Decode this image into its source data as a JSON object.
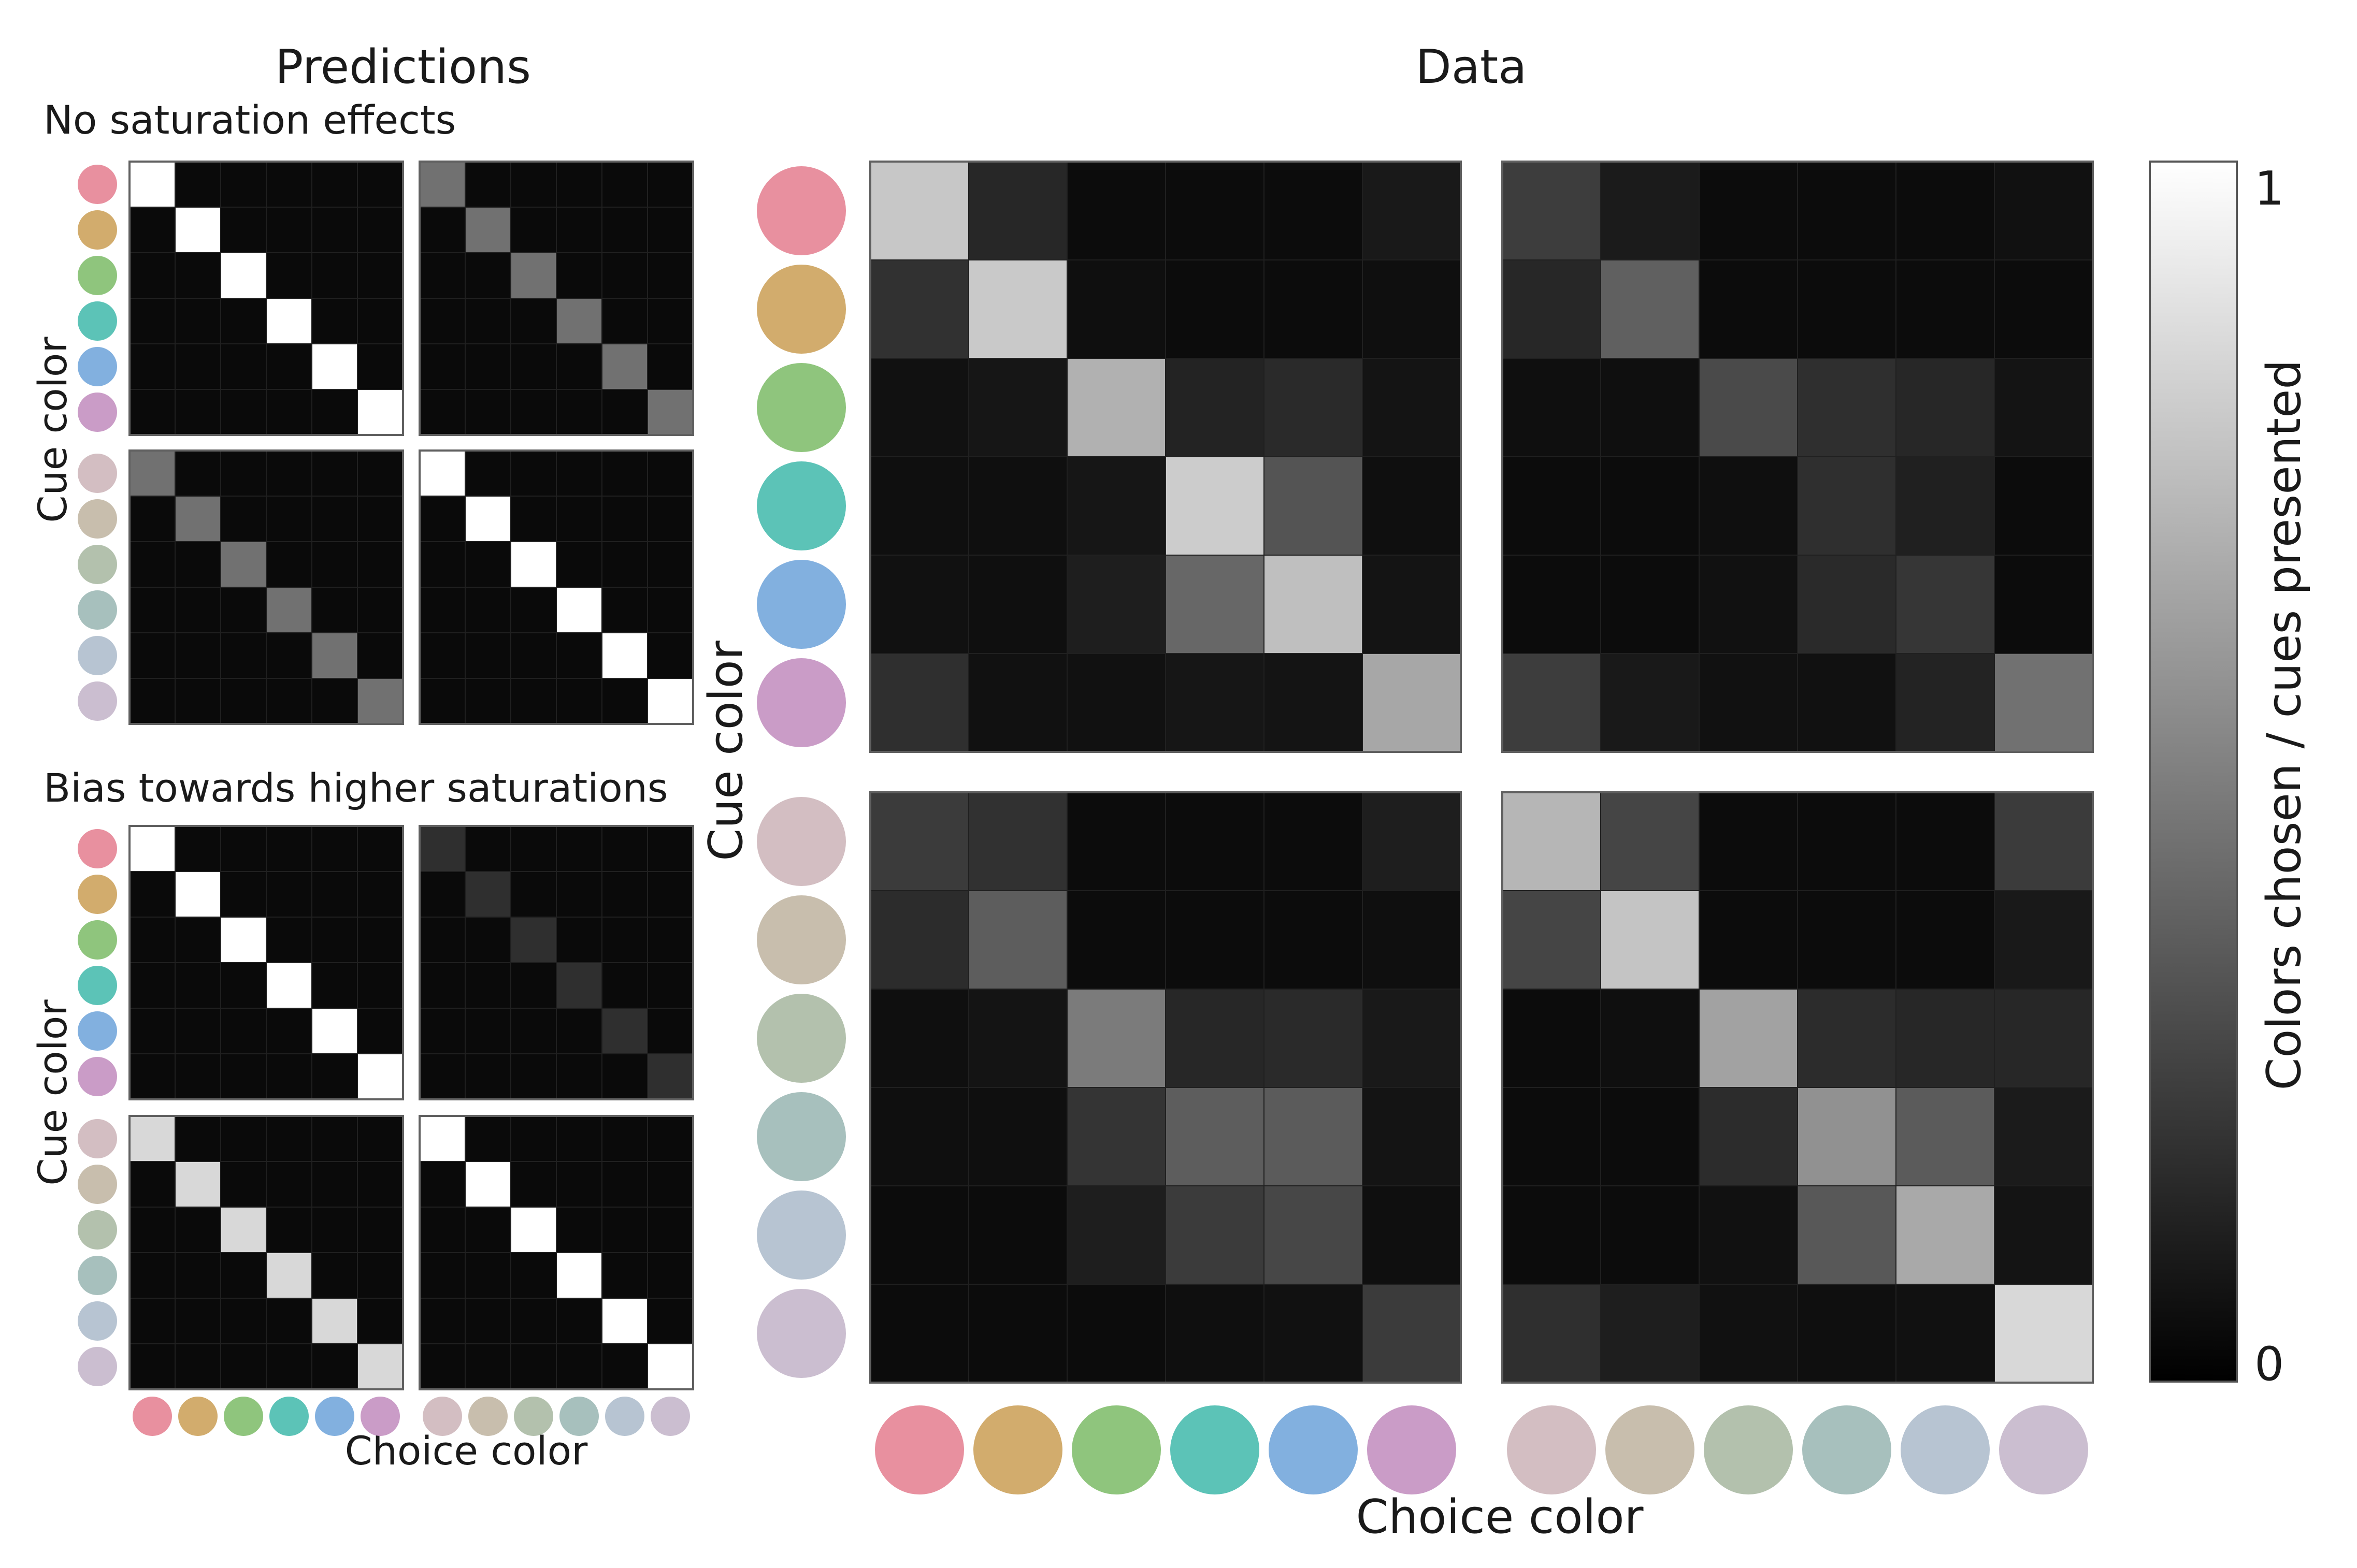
{
  "titles": {
    "predictions": "Predictions",
    "data": "Data",
    "no_saturation": "No saturation effects",
    "bias": "Bias towards higher saturations"
  },
  "axis_labels": {
    "cue_color": "Cue color",
    "choice_color": "Choice color",
    "colorbar": "Colors chosen / cues presented"
  },
  "colorbar": {
    "min_label": "0",
    "max_label": "1",
    "range": [
      0,
      1
    ]
  },
  "colors": {
    "saturated": [
      "#E8909F",
      "#D2AC6D",
      "#8FC57D",
      "#5CC3B7",
      "#82B0DF",
      "#CA9CC7"
    ],
    "desaturated": [
      "#D3BEC2",
      "#C8BEAD",
      "#B3C1AD",
      "#A7C0BD",
      "#B7C4D2",
      "#CBBED0"
    ]
  },
  "chart_data": [
    {
      "type": "heatmap",
      "title": "Predictions – No saturation effects",
      "rows": [
        "saturated cues",
        "desaturated cues"
      ],
      "cols": [
        "saturated choices",
        "desaturated choices"
      ],
      "ylabel": "Cue color",
      "zlim": [
        0,
        1
      ],
      "values": [
        [
          [
            1,
            0,
            0,
            0,
            0,
            0
          ],
          [
            0,
            1,
            0,
            0,
            0,
            0
          ],
          [
            0,
            0,
            1,
            0,
            0,
            0
          ],
          [
            0,
            0,
            0,
            1,
            0,
            0
          ],
          [
            0,
            0,
            0,
            0,
            1,
            0
          ],
          [
            0,
            0,
            0,
            0,
            0,
            1
          ]
        ],
        [
          [
            0.42,
            0,
            0,
            0,
            0,
            0
          ],
          [
            0,
            0.42,
            0,
            0,
            0,
            0
          ],
          [
            0,
            0,
            0.42,
            0,
            0,
            0
          ],
          [
            0,
            0,
            0,
            0.42,
            0,
            0
          ],
          [
            0,
            0,
            0,
            0,
            0.42,
            0
          ],
          [
            0,
            0,
            0,
            0,
            0,
            0.42
          ]
        ],
        [
          [
            0.42,
            0,
            0,
            0,
            0,
            0
          ],
          [
            0,
            0.42,
            0,
            0,
            0,
            0
          ],
          [
            0,
            0,
            0.42,
            0,
            0,
            0
          ],
          [
            0,
            0,
            0,
            0.42,
            0,
            0
          ],
          [
            0,
            0,
            0,
            0,
            0.42,
            0
          ],
          [
            0,
            0,
            0,
            0,
            0,
            0.42
          ]
        ],
        [
          [
            1,
            0,
            0,
            0,
            0,
            0
          ],
          [
            0,
            1,
            0,
            0,
            0,
            0
          ],
          [
            0,
            0,
            1,
            0,
            0,
            0
          ],
          [
            0,
            0,
            0,
            1,
            0,
            0
          ],
          [
            0,
            0,
            0,
            0,
            1,
            0
          ],
          [
            0,
            0,
            0,
            0,
            0,
            1
          ]
        ]
      ]
    },
    {
      "type": "heatmap",
      "title": "Predictions – Bias towards higher saturations",
      "rows": [
        "saturated cues",
        "desaturated cues"
      ],
      "cols": [
        "saturated choices",
        "desaturated choices"
      ],
      "ylabel": "Cue color",
      "xlabel": "Choice color",
      "zlim": [
        0,
        1
      ],
      "values": [
        [
          [
            1,
            0,
            0,
            0,
            0,
            0
          ],
          [
            0,
            1,
            0,
            0,
            0,
            0
          ],
          [
            0,
            0,
            1,
            0,
            0,
            0
          ],
          [
            0,
            0,
            0,
            1,
            0,
            0
          ],
          [
            0,
            0,
            0,
            0,
            1,
            0
          ],
          [
            0,
            0,
            0,
            0,
            0,
            1
          ]
        ],
        [
          [
            0.15,
            0,
            0,
            0,
            0,
            0
          ],
          [
            0,
            0.15,
            0,
            0,
            0,
            0
          ],
          [
            0,
            0,
            0.15,
            0,
            0,
            0
          ],
          [
            0,
            0,
            0,
            0.15,
            0,
            0
          ],
          [
            0,
            0,
            0,
            0,
            0.15,
            0
          ],
          [
            0,
            0,
            0,
            0,
            0,
            0.15
          ]
        ],
        [
          [
            0.84,
            0,
            0,
            0,
            0,
            0
          ],
          [
            0,
            0.84,
            0,
            0,
            0,
            0
          ],
          [
            0,
            0,
            0.84,
            0,
            0,
            0
          ],
          [
            0,
            0,
            0,
            0.84,
            0,
            0
          ],
          [
            0,
            0,
            0,
            0,
            0.84,
            0
          ],
          [
            0,
            0,
            0,
            0,
            0,
            0.84
          ]
        ],
        [
          [
            1,
            0,
            0,
            0,
            0,
            0
          ],
          [
            0,
            1,
            0,
            0,
            0,
            0
          ],
          [
            0,
            0,
            1,
            0,
            0,
            0
          ],
          [
            0,
            0,
            0,
            1,
            0,
            0
          ],
          [
            0,
            0,
            0,
            0,
            1,
            0
          ],
          [
            0,
            0,
            0,
            0,
            0,
            1
          ]
        ]
      ]
    },
    {
      "type": "heatmap",
      "title": "Data",
      "rows": [
        "saturated cues",
        "desaturated cues"
      ],
      "cols": [
        "saturated choices",
        "desaturated choices"
      ],
      "ylabel": "Cue color",
      "xlabel": "Choice color",
      "zlim": [
        0,
        1
      ],
      "values": [
        [
          [
            0.77,
            0.12,
            0.01,
            0.01,
            0.01,
            0.06
          ],
          [
            0.16,
            0.78,
            0.02,
            0.01,
            0.01,
            0.02
          ],
          [
            0.03,
            0.05,
            0.68,
            0.1,
            0.13,
            0.04
          ],
          [
            0.02,
            0.02,
            0.05,
            0.79,
            0.3,
            0.02
          ],
          [
            0.03,
            0.02,
            0.08,
            0.38,
            0.74,
            0.04
          ],
          [
            0.15,
            0.03,
            0.03,
            0.05,
            0.04,
            0.64
          ]
        ],
        [
          [
            0.21,
            0.07,
            0.01,
            0.01,
            0.01,
            0.03
          ],
          [
            0.12,
            0.35,
            0.01,
            0.01,
            0.01,
            0.01
          ],
          [
            0.02,
            0.02,
            0.26,
            0.15,
            0.12,
            0.04
          ],
          [
            0.01,
            0.01,
            0.02,
            0.15,
            0.09,
            0.01
          ],
          [
            0.01,
            0.01,
            0.03,
            0.13,
            0.18,
            0.01
          ],
          [
            0.21,
            0.06,
            0.03,
            0.03,
            0.1,
            0.42
          ]
        ],
        [
          [
            0.2,
            0.16,
            0.01,
            0.01,
            0.01,
            0.08
          ],
          [
            0.14,
            0.34,
            0.01,
            0.01,
            0.01,
            0.02
          ],
          [
            0.02,
            0.04,
            0.46,
            0.12,
            0.13,
            0.06
          ],
          [
            0.02,
            0.02,
            0.17,
            0.34,
            0.33,
            0.04
          ],
          [
            0.01,
            0.01,
            0.08,
            0.2,
            0.25,
            0.02
          ],
          [
            0.01,
            0.01,
            0.01,
            0.02,
            0.03,
            0.2
          ]
        ],
        [
          [
            0.7,
            0.24,
            0.01,
            0.01,
            0.01,
            0.2
          ],
          [
            0.24,
            0.76,
            0.01,
            0.01,
            0.01,
            0.06
          ],
          [
            0.01,
            0.02,
            0.62,
            0.14,
            0.12,
            0.12
          ],
          [
            0.01,
            0.01,
            0.14,
            0.55,
            0.33,
            0.07
          ],
          [
            0.01,
            0.01,
            0.03,
            0.32,
            0.65,
            0.04
          ],
          [
            0.15,
            0.08,
            0.03,
            0.02,
            0.03,
            0.84
          ]
        ]
      ]
    }
  ]
}
